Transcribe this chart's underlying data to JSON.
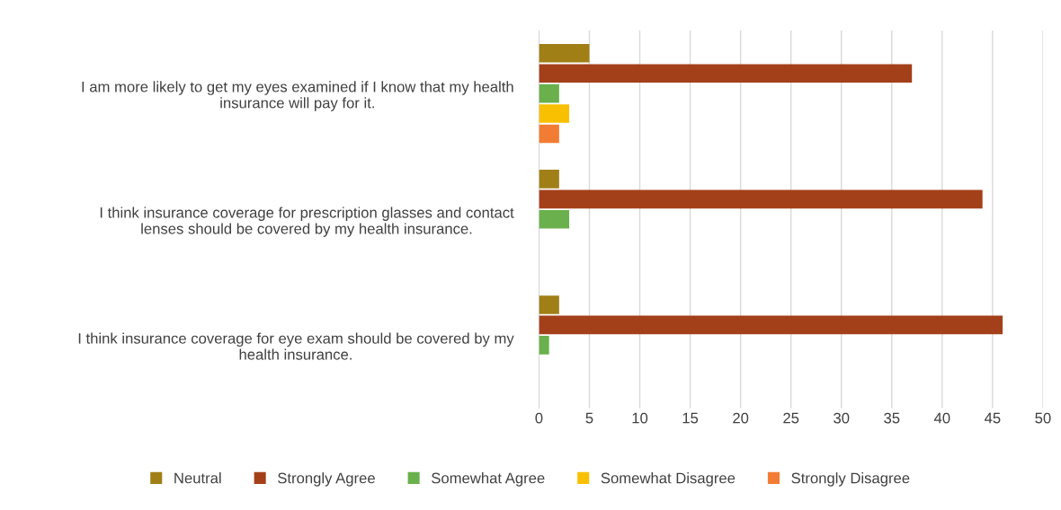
{
  "chart_data": {
    "type": "bar",
    "orientation": "horizontal",
    "categories": [
      "I am more likely to get my eyes examined if I know that my health\ninsurance will pay for it.",
      "I think insurance coverage for prescription glasses and contact\nlenses should be covered by my health insurance.",
      "I think insurance coverage for eye exam should be covered by my\nhealth insurance."
    ],
    "series": [
      {
        "name": "Neutral",
        "color": "#a07f17",
        "values": [
          5,
          2,
          2
        ]
      },
      {
        "name": "Strongly Agree",
        "color": "#a3401a",
        "values": [
          37,
          44,
          46
        ]
      },
      {
        "name": "Somewhat Agree",
        "color": "#6ab04c",
        "values": [
          2,
          3,
          1
        ]
      },
      {
        "name": "Somewhat Disagree",
        "color": "#f8c000",
        "values": [
          3,
          0,
          0
        ]
      },
      {
        "name": "Strongly Disagree",
        "color": "#f27c33",
        "values": [
          2,
          0,
          0
        ]
      }
    ],
    "xlim": [
      0,
      50
    ],
    "xticks": [
      0,
      5,
      10,
      15,
      20,
      25,
      30,
      35,
      40,
      45,
      50
    ],
    "grid": "x",
    "legend": "bottom"
  }
}
